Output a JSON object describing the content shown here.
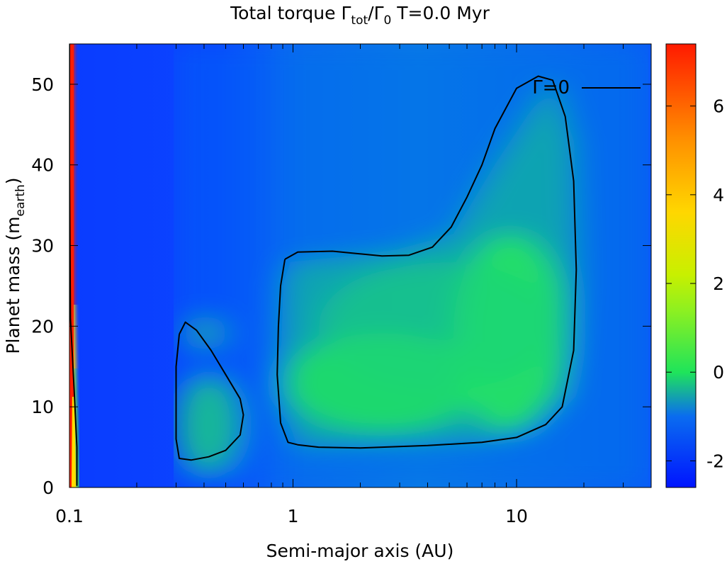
{
  "chart_data": {
    "type": "heatmap",
    "title_main": "Total torque Γ",
    "title_sub1": "tot",
    "title_mid": "/Γ",
    "title_sub2": "0",
    "title_tail": " T=0.0 Myr",
    "xlabel": "Semi-major axis (AU)",
    "ylabel_main": "Planet mass (m",
    "ylabel_sub": "earth",
    "ylabel_tail": ")",
    "x_scale": "log",
    "xlim": [
      0.1,
      40
    ],
    "ylim": [
      0,
      55
    ],
    "x_ticks": [
      0.1,
      1,
      10
    ],
    "x_tick_labels": [
      "0.1",
      "1",
      "10"
    ],
    "y_ticks": [
      0,
      10,
      20,
      30,
      40,
      50
    ],
    "y_tick_labels": [
      "0",
      "10",
      "20",
      "30",
      "40",
      "50"
    ],
    "colorbar": {
      "range": [
        -2.6,
        7.4
      ],
      "ticks": [
        -2,
        0,
        2,
        4,
        6
      ],
      "tick_labels": [
        "-2",
        "0",
        "2",
        "4",
        "6"
      ],
      "colors": [
        "#0014ff",
        "#1fe45a",
        "#c8f000",
        "#ffd700",
        "#ff9200",
        "#ff1a00"
      ]
    },
    "legend": {
      "label": "Γ=0",
      "position": "top-right",
      "line_color": "#000000"
    },
    "contours": [
      {
        "name": "inner-zero-torque-contour",
        "points": [
          [
            0.31,
            19
          ],
          [
            0.33,
            20.5
          ],
          [
            0.37,
            19.5
          ],
          [
            0.43,
            17
          ],
          [
            0.5,
            14
          ],
          [
            0.58,
            11
          ],
          [
            0.6,
            9
          ],
          [
            0.58,
            6.5
          ],
          [
            0.5,
            4.6
          ],
          [
            0.42,
            3.8
          ],
          [
            0.35,
            3.4
          ],
          [
            0.31,
            3.6
          ],
          [
            0.3,
            6
          ],
          [
            0.3,
            10
          ],
          [
            0.3,
            15
          ],
          [
            0.31,
            19
          ]
        ]
      },
      {
        "name": "outer-zero-torque-contour",
        "points": [
          [
            0.92,
            28.3
          ],
          [
            1.05,
            29.2
          ],
          [
            1.5,
            29.3
          ],
          [
            2.5,
            28.7
          ],
          [
            3.3,
            28.8
          ],
          [
            4.2,
            29.8
          ],
          [
            5.1,
            32.3
          ],
          [
            6,
            36
          ],
          [
            7,
            40
          ],
          [
            8,
            44.5
          ],
          [
            10,
            49.5
          ],
          [
            12.5,
            51
          ],
          [
            14.5,
            50.5
          ],
          [
            16.5,
            46
          ],
          [
            18,
            38
          ],
          [
            18.5,
            27
          ],
          [
            18,
            17
          ],
          [
            16,
            10
          ],
          [
            13.5,
            7.8
          ],
          [
            10,
            6.2
          ],
          [
            7,
            5.6
          ],
          [
            4,
            5.2
          ],
          [
            2,
            4.9
          ],
          [
            1.3,
            5
          ],
          [
            1.05,
            5.3
          ],
          [
            0.95,
            5.6
          ],
          [
            0.88,
            8
          ],
          [
            0.85,
            14
          ],
          [
            0.86,
            20
          ],
          [
            0.88,
            25
          ],
          [
            0.92,
            28.3
          ]
        ]
      },
      {
        "name": "edge-zero-torque-contour",
        "points": [
          [
            0.1,
            55
          ],
          [
            0.1,
            40
          ],
          [
            0.101,
            21
          ],
          [
            0.105,
            12
          ],
          [
            0.108,
            5
          ],
          [
            0.108,
            0.2
          ]
        ]
      }
    ]
  }
}
